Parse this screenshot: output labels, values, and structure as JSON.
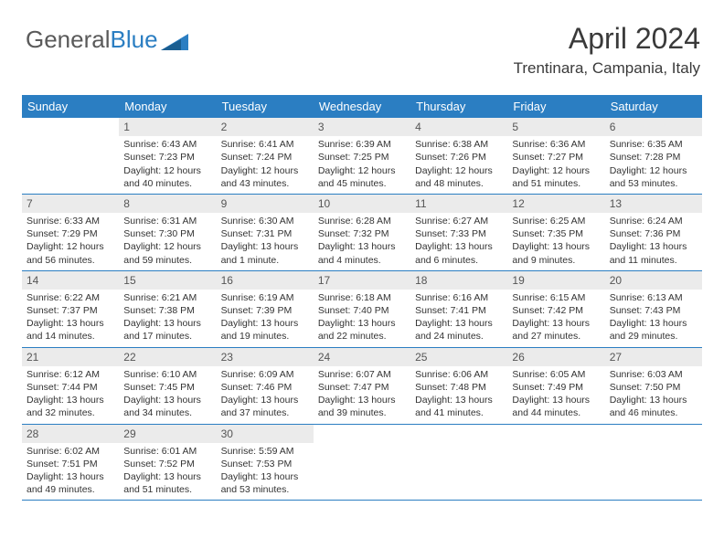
{
  "logo": {
    "text1": "General",
    "text2": "Blue",
    "accent": "#2b7ec2",
    "gray": "#5a5a5a"
  },
  "title": "April 2024",
  "location": "Trentinara, Campania, Italy",
  "colors": {
    "headerBg": "#2b7ec2",
    "headerText": "#ffffff",
    "daynumBg": "#ebebeb",
    "border": "#2b7ec2",
    "bodyText": "#333333"
  },
  "weekdays": [
    "Sunday",
    "Monday",
    "Tuesday",
    "Wednesday",
    "Thursday",
    "Friday",
    "Saturday"
  ],
  "weeks": [
    [
      {
        "n": "",
        "sr": "",
        "ss": "",
        "dl": "",
        "empty": true
      },
      {
        "n": "1",
        "sr": "Sunrise: 6:43 AM",
        "ss": "Sunset: 7:23 PM",
        "dl": "Daylight: 12 hours and 40 minutes."
      },
      {
        "n": "2",
        "sr": "Sunrise: 6:41 AM",
        "ss": "Sunset: 7:24 PM",
        "dl": "Daylight: 12 hours and 43 minutes."
      },
      {
        "n": "3",
        "sr": "Sunrise: 6:39 AM",
        "ss": "Sunset: 7:25 PM",
        "dl": "Daylight: 12 hours and 45 minutes."
      },
      {
        "n": "4",
        "sr": "Sunrise: 6:38 AM",
        "ss": "Sunset: 7:26 PM",
        "dl": "Daylight: 12 hours and 48 minutes."
      },
      {
        "n": "5",
        "sr": "Sunrise: 6:36 AM",
        "ss": "Sunset: 7:27 PM",
        "dl": "Daylight: 12 hours and 51 minutes."
      },
      {
        "n": "6",
        "sr": "Sunrise: 6:35 AM",
        "ss": "Sunset: 7:28 PM",
        "dl": "Daylight: 12 hours and 53 minutes."
      }
    ],
    [
      {
        "n": "7",
        "sr": "Sunrise: 6:33 AM",
        "ss": "Sunset: 7:29 PM",
        "dl": "Daylight: 12 hours and 56 minutes."
      },
      {
        "n": "8",
        "sr": "Sunrise: 6:31 AM",
        "ss": "Sunset: 7:30 PM",
        "dl": "Daylight: 12 hours and 59 minutes."
      },
      {
        "n": "9",
        "sr": "Sunrise: 6:30 AM",
        "ss": "Sunset: 7:31 PM",
        "dl": "Daylight: 13 hours and 1 minute."
      },
      {
        "n": "10",
        "sr": "Sunrise: 6:28 AM",
        "ss": "Sunset: 7:32 PM",
        "dl": "Daylight: 13 hours and 4 minutes."
      },
      {
        "n": "11",
        "sr": "Sunrise: 6:27 AM",
        "ss": "Sunset: 7:33 PM",
        "dl": "Daylight: 13 hours and 6 minutes."
      },
      {
        "n": "12",
        "sr": "Sunrise: 6:25 AM",
        "ss": "Sunset: 7:35 PM",
        "dl": "Daylight: 13 hours and 9 minutes."
      },
      {
        "n": "13",
        "sr": "Sunrise: 6:24 AM",
        "ss": "Sunset: 7:36 PM",
        "dl": "Daylight: 13 hours and 11 minutes."
      }
    ],
    [
      {
        "n": "14",
        "sr": "Sunrise: 6:22 AM",
        "ss": "Sunset: 7:37 PM",
        "dl": "Daylight: 13 hours and 14 minutes."
      },
      {
        "n": "15",
        "sr": "Sunrise: 6:21 AM",
        "ss": "Sunset: 7:38 PM",
        "dl": "Daylight: 13 hours and 17 minutes."
      },
      {
        "n": "16",
        "sr": "Sunrise: 6:19 AM",
        "ss": "Sunset: 7:39 PM",
        "dl": "Daylight: 13 hours and 19 minutes."
      },
      {
        "n": "17",
        "sr": "Sunrise: 6:18 AM",
        "ss": "Sunset: 7:40 PM",
        "dl": "Daylight: 13 hours and 22 minutes."
      },
      {
        "n": "18",
        "sr": "Sunrise: 6:16 AM",
        "ss": "Sunset: 7:41 PM",
        "dl": "Daylight: 13 hours and 24 minutes."
      },
      {
        "n": "19",
        "sr": "Sunrise: 6:15 AM",
        "ss": "Sunset: 7:42 PM",
        "dl": "Daylight: 13 hours and 27 minutes."
      },
      {
        "n": "20",
        "sr": "Sunrise: 6:13 AM",
        "ss": "Sunset: 7:43 PM",
        "dl": "Daylight: 13 hours and 29 minutes."
      }
    ],
    [
      {
        "n": "21",
        "sr": "Sunrise: 6:12 AM",
        "ss": "Sunset: 7:44 PM",
        "dl": "Daylight: 13 hours and 32 minutes."
      },
      {
        "n": "22",
        "sr": "Sunrise: 6:10 AM",
        "ss": "Sunset: 7:45 PM",
        "dl": "Daylight: 13 hours and 34 minutes."
      },
      {
        "n": "23",
        "sr": "Sunrise: 6:09 AM",
        "ss": "Sunset: 7:46 PM",
        "dl": "Daylight: 13 hours and 37 minutes."
      },
      {
        "n": "24",
        "sr": "Sunrise: 6:07 AM",
        "ss": "Sunset: 7:47 PM",
        "dl": "Daylight: 13 hours and 39 minutes."
      },
      {
        "n": "25",
        "sr": "Sunrise: 6:06 AM",
        "ss": "Sunset: 7:48 PM",
        "dl": "Daylight: 13 hours and 41 minutes."
      },
      {
        "n": "26",
        "sr": "Sunrise: 6:05 AM",
        "ss": "Sunset: 7:49 PM",
        "dl": "Daylight: 13 hours and 44 minutes."
      },
      {
        "n": "27",
        "sr": "Sunrise: 6:03 AM",
        "ss": "Sunset: 7:50 PM",
        "dl": "Daylight: 13 hours and 46 minutes."
      }
    ],
    [
      {
        "n": "28",
        "sr": "Sunrise: 6:02 AM",
        "ss": "Sunset: 7:51 PM",
        "dl": "Daylight: 13 hours and 49 minutes."
      },
      {
        "n": "29",
        "sr": "Sunrise: 6:01 AM",
        "ss": "Sunset: 7:52 PM",
        "dl": "Daylight: 13 hours and 51 minutes."
      },
      {
        "n": "30",
        "sr": "Sunrise: 5:59 AM",
        "ss": "Sunset: 7:53 PM",
        "dl": "Daylight: 13 hours and 53 minutes."
      },
      {
        "n": "",
        "sr": "",
        "ss": "",
        "dl": "",
        "empty": true
      },
      {
        "n": "",
        "sr": "",
        "ss": "",
        "dl": "",
        "empty": true
      },
      {
        "n": "",
        "sr": "",
        "ss": "",
        "dl": "",
        "empty": true
      },
      {
        "n": "",
        "sr": "",
        "ss": "",
        "dl": "",
        "empty": true
      }
    ]
  ]
}
